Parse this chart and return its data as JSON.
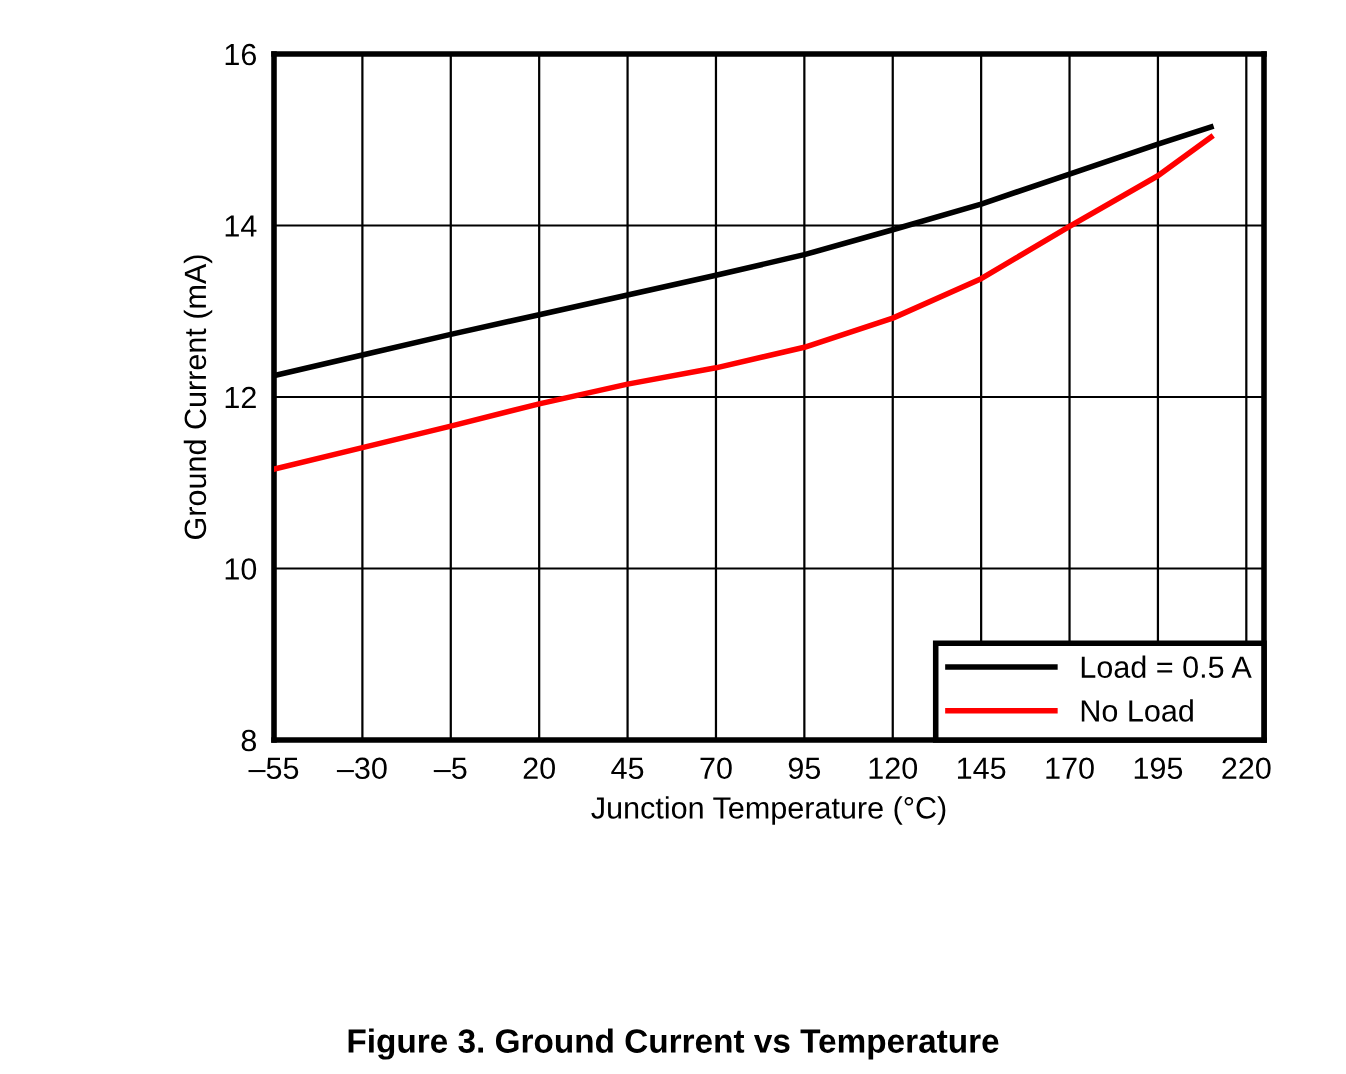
{
  "chart_data": {
    "type": "line",
    "title": "Figure 3. Ground Current vs Temperature",
    "xlabel": "Junction Temperature (°C)",
    "ylabel": "Ground Current (mA)",
    "x": [
      -55,
      -30,
      -5,
      20,
      45,
      70,
      95,
      120,
      145,
      170,
      195,
      210
    ],
    "series": [
      {
        "name": "Load = 0.5 A",
        "color": "#000000",
        "values": [
          12.25,
          12.49,
          12.73,
          12.96,
          13.19,
          13.42,
          13.66,
          13.95,
          14.25,
          14.6,
          14.95,
          15.15
        ]
      },
      {
        "name": "No Load",
        "color": "#ff0000",
        "values": [
          11.16,
          11.41,
          11.66,
          11.92,
          12.15,
          12.34,
          12.58,
          12.92,
          13.38,
          13.99,
          14.58,
          15.03
        ]
      }
    ],
    "xlim": [
      -55,
      225
    ],
    "ylim": [
      8,
      16
    ],
    "xticks": [
      {
        "value": -55,
        "label": "–55"
      },
      {
        "value": -30,
        "label": "–30"
      },
      {
        "value": -5,
        "label": "–5"
      },
      20,
      45,
      70,
      95,
      120,
      145,
      170,
      195,
      220
    ],
    "yticks": [
      8,
      10,
      12,
      14,
      16
    ],
    "grid": true,
    "legend": "bottom right",
    "line_style": "solid",
    "marker": "none"
  }
}
